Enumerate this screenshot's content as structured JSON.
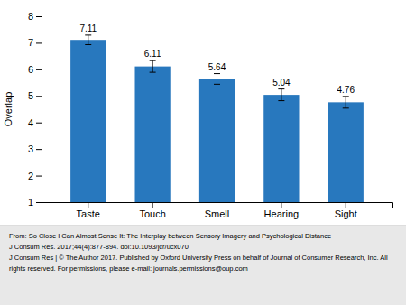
{
  "chart_data": {
    "type": "bar",
    "categories": [
      "Taste",
      "Touch",
      "Smell",
      "Hearing",
      "Sight"
    ],
    "values": [
      7.11,
      6.11,
      5.64,
      5.04,
      4.76
    ],
    "errors": [
      0.18,
      0.22,
      0.2,
      0.22,
      0.22
    ],
    "color": "#2878BE",
    "y_label": "Overlap",
    "ylim": [
      1,
      8
    ],
    "yticks": [
      1,
      2,
      3,
      4,
      5,
      6,
      7,
      8
    ],
    "data_labels": true,
    "annotations": [
      "From: So Close I Can Almost Sense It: The Interplay between Sensory Imagery and Psychological Distance",
      "J Consum Res. 2017;44(4):877-894. doi:10.1093/jcr/ucx070",
      "J Consum Res | © The Author 2017. Published by Oxford University Press on behalf of Journal of Consumer Research, Inc. All",
      "rights reserved. For permissions, please e-mail: journals.permissions@oup.com"
    ]
  }
}
